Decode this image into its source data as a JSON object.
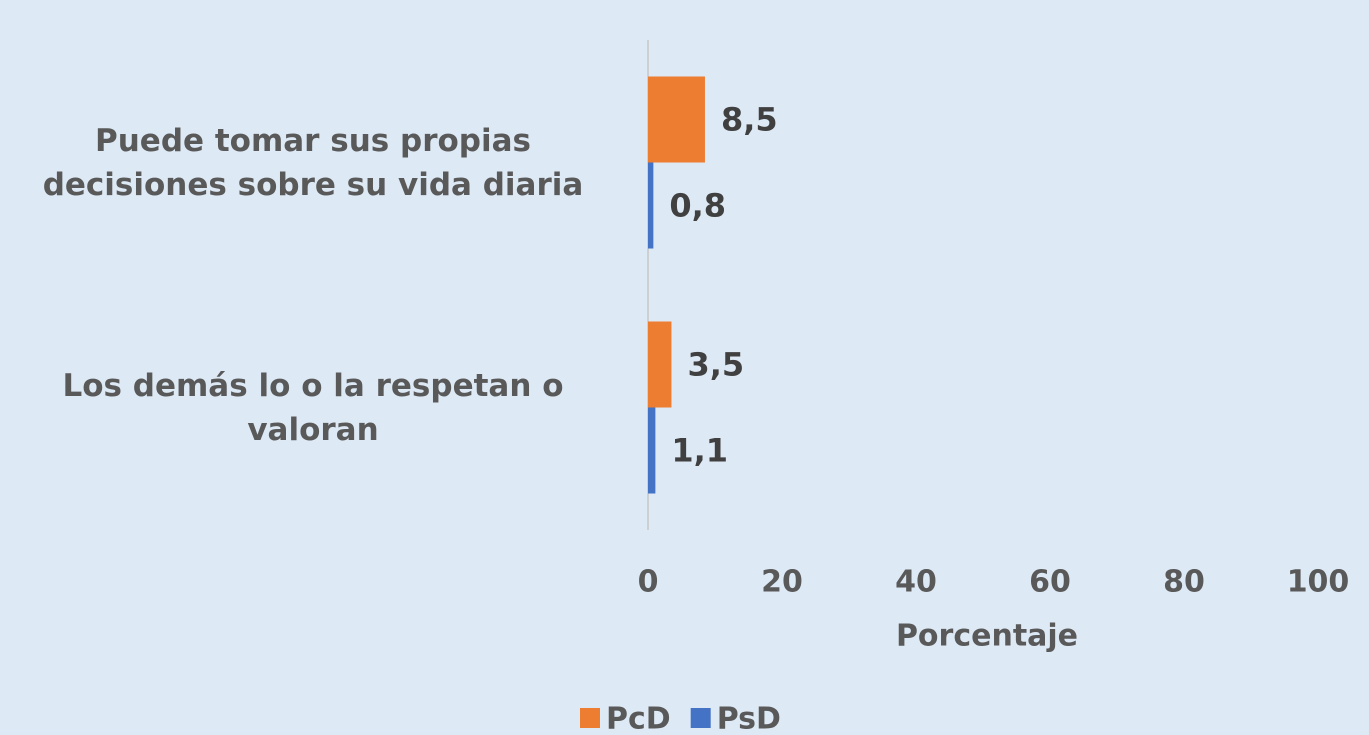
{
  "chart_data": {
    "type": "hbar",
    "categories": [
      "Puede tomar sus propias decisiones sobre su vida diaria",
      "Los demás lo o la respetan o valoran"
    ],
    "series": [
      {
        "name": "PcD",
        "color": "#ed7d31",
        "values": [
          8.5,
          3.5
        ],
        "value_labels": [
          "8,5",
          "3,5"
        ]
      },
      {
        "name": "PsD",
        "color": "#4472c4",
        "values": [
          0.8,
          1.1
        ],
        "value_labels": [
          "0,8",
          "1,1"
        ]
      }
    ],
    "xlim": [
      0,
      100
    ],
    "xticks": [
      0,
      20,
      40,
      60,
      80,
      100
    ],
    "xlabel": "Porcentaje",
    "legend": "bottom"
  }
}
